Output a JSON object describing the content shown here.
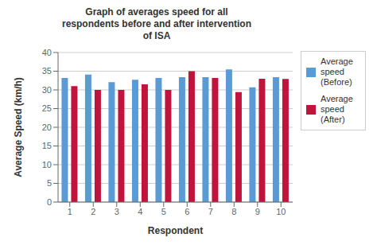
{
  "chart_data": {
    "type": "bar",
    "title": "Graph of averages speed for all\nrespondents before and after intervention\nof ISA",
    "xlabel": "Respondent",
    "ylabel": "Average Speed (km/h)",
    "categories": [
      "1",
      "2",
      "3",
      "4",
      "5",
      "6",
      "7",
      "8",
      "9",
      "10"
    ],
    "series": [
      {
        "name": "Average\nspeed\n(Before)",
        "color": "#5B9BD5",
        "values": [
          33.2,
          34.1,
          32.1,
          32.7,
          33.2,
          33.4,
          33.4,
          35.5,
          30.7,
          33.4
        ]
      },
      {
        "name": "Average\nspeed\n(After)",
        "color": "#C0143C",
        "values": [
          31.0,
          30.0,
          30.0,
          31.5,
          30.0,
          35.0,
          33.2,
          29.4,
          33.0,
          32.9
        ]
      }
    ],
    "ylim": [
      0,
      40
    ],
    "yticks": [
      0,
      5,
      10,
      15,
      20,
      25,
      30,
      35,
      40
    ],
    "grid": true,
    "legend": "right"
  }
}
